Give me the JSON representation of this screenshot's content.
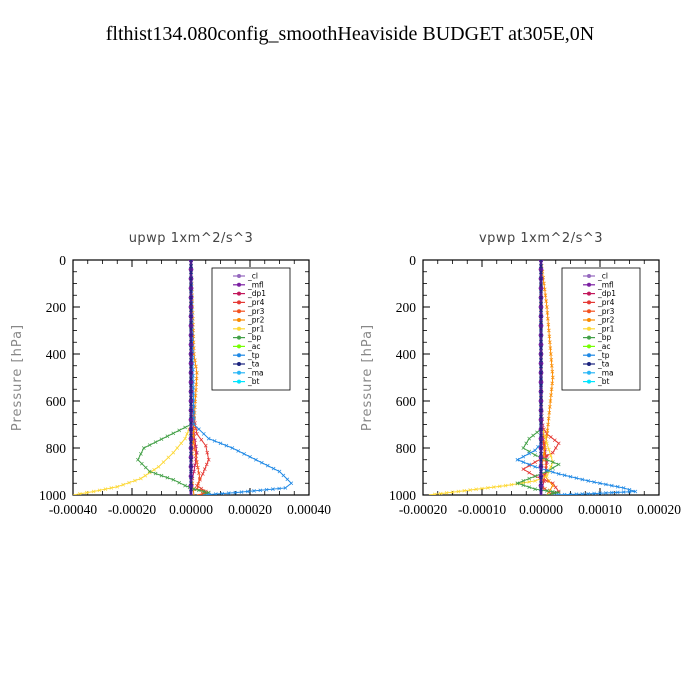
{
  "figure": {
    "title": "flthist134.080config_smoothHeaviside  BUDGET at305E,0N"
  },
  "chart_data": [
    {
      "type": "line",
      "title": "upwp   1xm^2/s^3",
      "xlabel": "",
      "ylabel": "Pressure [hPa]",
      "xlim": [
        -0.0004,
        0.0004
      ],
      "ylim": [
        1000,
        0
      ],
      "xticks": [
        "-0.00040",
        "-0.00020",
        "0.00000",
        "0.00020",
        "0.00040"
      ],
      "yticks": [
        "0",
        "200",
        "400",
        "600",
        "800",
        "1000"
      ],
      "legend_position": "top-right",
      "series": [
        {
          "name": "_cl",
          "color": "#9467bd",
          "x": [
            0,
            0,
            0,
            0,
            0,
            0,
            0,
            0,
            0,
            0,
            0,
            0,
            0
          ],
          "y": [
            0,
            80,
            160,
            240,
            320,
            400,
            480,
            560,
            640,
            720,
            800,
            880,
            1000
          ]
        },
        {
          "name": "_mfl",
          "color": "#7b1fa2",
          "x": [
            0,
            0,
            0,
            0,
            0,
            0,
            0,
            0,
            0,
            0,
            0,
            0,
            0
          ],
          "y": [
            0,
            80,
            160,
            240,
            320,
            400,
            480,
            560,
            640,
            720,
            800,
            880,
            1000
          ]
        },
        {
          "name": "_dp1",
          "color": "#c2185b",
          "x": [
            0,
            0,
            0,
            0,
            1e-05,
            2e-05,
            1e-05,
            0,
            0
          ],
          "y": [
            0,
            200,
            400,
            600,
            740,
            820,
            900,
            960,
            1000
          ]
        },
        {
          "name": "_pr4",
          "color": "#e53935",
          "x": [
            0,
            0,
            2e-05,
            5e-05,
            6e-05,
            4e-05,
            2e-05,
            5e-05,
            3e-05
          ],
          "y": [
            0,
            600,
            740,
            790,
            850,
            910,
            960,
            985,
            1000
          ]
        },
        {
          "name": "_pr3",
          "color": "#f4511e",
          "x": [
            0,
            0,
            1e-05,
            2e-05,
            3e-05,
            2e-05,
            6e-05,
            2e-05
          ],
          "y": [
            0,
            700,
            780,
            860,
            930,
            975,
            990,
            1000
          ]
        },
        {
          "name": "_pr2",
          "color": "#fb8c00",
          "x": [
            0,
            1e-05,
            2e-05,
            1e-05,
            0,
            1e-05
          ],
          "y": [
            0,
            400,
            480,
            700,
            900,
            1000
          ]
        },
        {
          "name": "_pr1",
          "color": "#fdd835",
          "x": [
            0,
            0,
            -2e-05,
            -6e-05,
            -0.00011,
            -0.00017,
            -0.00025,
            -0.00033,
            -0.0004
          ],
          "y": [
            0,
            700,
            760,
            820,
            880,
            930,
            965,
            985,
            1000
          ]
        },
        {
          "name": "_bp",
          "color": "#43a047",
          "x": [
            0,
            0,
            -8e-05,
            -0.00016,
            -0.00018,
            -0.00014,
            -6e-05,
            -2e-05,
            1e-05,
            6e-05,
            4e-05
          ],
          "y": [
            0,
            700,
            750,
            800,
            850,
            900,
            935,
            960,
            975,
            990,
            1000
          ]
        },
        {
          "name": "_ac",
          "color": "#76ff03",
          "x": [
            0,
            0,
            0,
            0,
            0,
            0
          ],
          "y": [
            0,
            200,
            400,
            600,
            800,
            1000
          ]
        },
        {
          "name": "_tp",
          "color": "#1e88e5",
          "x": [
            0,
            1e-05,
            6e-05,
            0.00014,
            0.00022,
            0.0003,
            0.00034,
            0.00032,
            0.00015,
            4e-05
          ],
          "y": [
            0,
            700,
            760,
            800,
            850,
            900,
            950,
            970,
            990,
            1000
          ]
        },
        {
          "name": "_ta",
          "color": "#1a237e",
          "x": [
            0,
            0,
            0,
            0,
            0,
            0,
            0
          ],
          "y": [
            0,
            160,
            320,
            480,
            640,
            800,
            1000
          ]
        },
        {
          "name": "_ma",
          "color": "#29b6f6",
          "x": [
            0,
            0,
            0,
            0,
            0
          ],
          "y": [
            0,
            250,
            500,
            750,
            1000
          ]
        },
        {
          "name": "_bt",
          "color": "#00e5ff",
          "x": [
            0,
            0,
            0,
            0,
            0
          ],
          "y": [
            0,
            250,
            500,
            750,
            1000
          ]
        }
      ]
    },
    {
      "type": "line",
      "title": "vpwp   1xm^2/s^3",
      "xlabel": "",
      "ylabel": "Pressure [hPa]",
      "xlim": [
        -0.0002,
        0.0002
      ],
      "ylim": [
        1000,
        0
      ],
      "xticks": [
        "-0.00020",
        "-0.00010",
        "0.00000",
        "0.00010",
        "0.00020"
      ],
      "yticks": [
        "0",
        "200",
        "400",
        "600",
        "800",
        "1000"
      ],
      "legend_position": "top-right",
      "series": [
        {
          "name": "_cl",
          "color": "#9467bd",
          "x": [
            0,
            0,
            0,
            0,
            0,
            0,
            0,
            0,
            0,
            0,
            0,
            0,
            0
          ],
          "y": [
            0,
            80,
            160,
            240,
            320,
            400,
            480,
            560,
            640,
            720,
            800,
            880,
            1000
          ]
        },
        {
          "name": "_mfl",
          "color": "#7b1fa2",
          "x": [
            0,
            0,
            0,
            0,
            0,
            0,
            0,
            0,
            0,
            0,
            0,
            0,
            0
          ],
          "y": [
            0,
            80,
            160,
            240,
            320,
            400,
            480,
            560,
            640,
            720,
            800,
            880,
            1000
          ]
        },
        {
          "name": "_dp1",
          "color": "#c2185b",
          "x": [
            0,
            0,
            5e-06,
            1e-05,
            5e-06,
            0
          ],
          "y": [
            0,
            600,
            780,
            860,
            940,
            1000
          ]
        },
        {
          "name": "_pr4",
          "color": "#e53935",
          "x": [
            0,
            0,
            1e-05,
            3e-05,
            2e-05,
            -1e-05,
            -3e-05,
            -1e-05,
            2e-05,
            3e-05,
            1e-05
          ],
          "y": [
            0,
            700,
            740,
            780,
            820,
            860,
            890,
            920,
            950,
            985,
            1000
          ]
        },
        {
          "name": "_pr3",
          "color": "#f4511e",
          "x": [
            0,
            0,
            5e-06,
            1e-05,
            0,
            2e-05
          ],
          "y": [
            0,
            700,
            800,
            900,
            960,
            1000
          ]
        },
        {
          "name": "_pr2",
          "color": "#fb8c00",
          "x": [
            0,
            1e-05,
            2e-05,
            1e-05,
            0,
            2e-05,
            1e-05
          ],
          "y": [
            0,
            200,
            500,
            750,
            900,
            960,
            1000
          ]
        },
        {
          "name": "_pr1",
          "color": "#fdd835",
          "x": [
            0,
            0,
            1e-05,
            2e-05,
            1e-05,
            -1e-05,
            -6e-05,
            -0.00014,
            -0.00019
          ],
          "y": [
            0,
            700,
            780,
            860,
            920,
            940,
            960,
            985,
            1000
          ]
        },
        {
          "name": "_bp",
          "color": "#43a047",
          "x": [
            0,
            0,
            -2e-05,
            -3e-05,
            -1e-05,
            3e-05,
            1e-05,
            -2e-05,
            -4e-05,
            -1e-05,
            3e-05,
            1e-05
          ],
          "y": [
            0,
            720,
            760,
            800,
            830,
            870,
            900,
            930,
            950,
            975,
            990,
            1000
          ]
        },
        {
          "name": "_ac",
          "color": "#76ff03",
          "x": [
            0,
            0,
            0,
            0,
            0,
            0
          ],
          "y": [
            0,
            200,
            400,
            600,
            800,
            1000
          ]
        },
        {
          "name": "_tp",
          "color": "#1e88e5",
          "x": [
            0,
            0,
            -1e-05,
            -4e-05,
            -1e-05,
            3e-05,
            8e-05,
            0.00014,
            0.00016,
            8e-05,
            2e-05
          ],
          "y": [
            0,
            780,
            810,
            850,
            880,
            910,
            940,
            970,
            985,
            995,
            1000
          ]
        },
        {
          "name": "_ta",
          "color": "#1a237e",
          "x": [
            0,
            0,
            0,
            0,
            0,
            0,
            0
          ],
          "y": [
            0,
            160,
            320,
            480,
            640,
            800,
            1000
          ]
        },
        {
          "name": "_ma",
          "color": "#29b6f6",
          "x": [
            0,
            0,
            0,
            0,
            0
          ],
          "y": [
            0,
            250,
            500,
            750,
            1000
          ]
        },
        {
          "name": "_bt",
          "color": "#00e5ff",
          "x": [
            0,
            0,
            0,
            0,
            0
          ],
          "y": [
            0,
            250,
            500,
            750,
            1000
          ]
        }
      ]
    }
  ]
}
